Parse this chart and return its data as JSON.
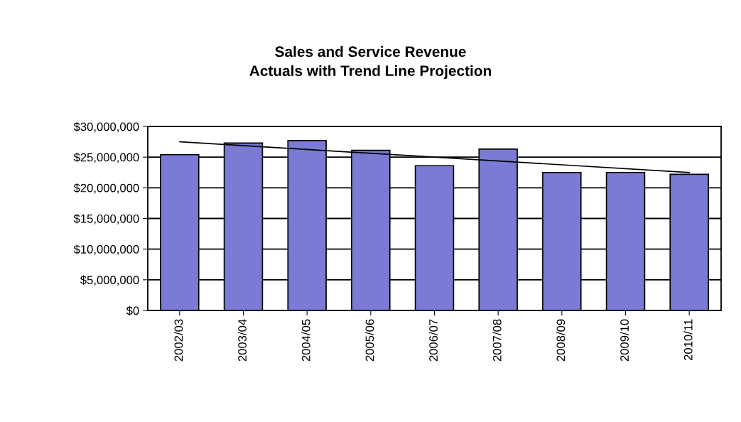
{
  "chart_data": {
    "type": "bar",
    "title": "Sales and Service Revenue\nActuals with Trend Line Projection",
    "categories": [
      "2002/03",
      "2003/04",
      "2004/05",
      "2005/06",
      "2006/07",
      "2007/08",
      "2008/09",
      "2009/10",
      "2010/11"
    ],
    "series": [
      {
        "color": "#7b7bd6",
        "values": [
          25400000,
          27300000,
          27700000,
          26100000,
          23600000,
          26300000,
          22500000,
          22500000,
          22200000
        ]
      },
      {
        "type": "line",
        "color": "#000000",
        "x": [
          "2002/03",
          "2010/11"
        ],
        "values": [
          27500000,
          22500000
        ]
      }
    ],
    "ylim": [
      0,
      30000000
    ],
    "yticks": [
      {
        "value": 0,
        "label": "$0"
      },
      {
        "value": 5000000,
        "label": "$5,000,000"
      },
      {
        "value": 10000000,
        "label": "$10,000,000"
      },
      {
        "value": 15000000,
        "label": "$15,000,000"
      },
      {
        "value": 20000000,
        "label": "$20,000,000"
      },
      {
        "value": 25000000,
        "label": "$25,000,000"
      },
      {
        "value": 30000000,
        "label": "$30,000,000"
      }
    ],
    "grid": "y",
    "legend": false,
    "marker": "none",
    "line_style": "solid"
  }
}
